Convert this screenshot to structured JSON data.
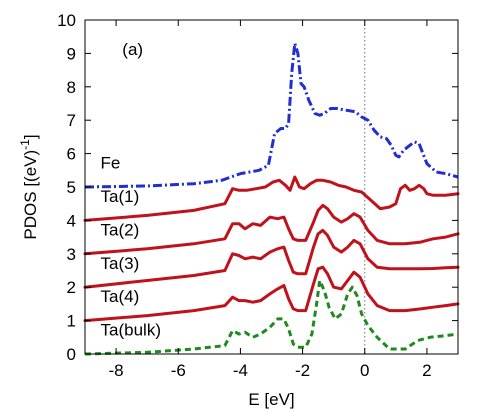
{
  "chart_data": {
    "type": "line",
    "panel_label": "(a)",
    "xlabel": "E [eV]",
    "ylabel": "PDOS [(eV)^-1]",
    "ylabel_parts": {
      "main": "PDOS [(eV)",
      "sup": "-1",
      "end": "]"
    },
    "xlim": [
      -9,
      3
    ],
    "ylim": [
      0,
      10
    ],
    "xticks": [
      -8,
      -6,
      -4,
      -2,
      0,
      2
    ],
    "yticks": [
      0,
      1,
      2,
      3,
      4,
      5,
      6,
      7,
      8,
      9,
      10
    ],
    "vline_at": 0,
    "series": [
      {
        "name": "Fe",
        "color": "#1f2fd0",
        "style": "dashdot",
        "offset": 5,
        "x": [
          -9,
          -7,
          -5.5,
          -4.6,
          -4.3,
          -4.0,
          -3.7,
          -3.4,
          -3.1,
          -2.9,
          -2.7,
          -2.55,
          -2.45,
          -2.35,
          -2.25,
          -2.15,
          -2.05,
          -1.95,
          -1.8,
          -1.6,
          -1.45,
          -1.3,
          -1.1,
          -0.9,
          -0.6,
          -0.3,
          -0.1,
          0.1,
          0.3,
          0.5,
          0.7,
          0.85,
          1.0,
          1.1,
          1.25,
          1.45,
          1.6,
          1.75,
          1.85,
          2.0,
          2.3,
          2.6,
          3.0
        ],
        "y": [
          0,
          0.03,
          0.1,
          0.2,
          0.3,
          0.4,
          0.45,
          0.5,
          0.65,
          1.6,
          1.75,
          1.75,
          1.9,
          3.4,
          4.3,
          4.0,
          3.1,
          3.0,
          2.6,
          2.2,
          2.15,
          2.2,
          2.35,
          2.35,
          2.3,
          2.25,
          2.1,
          2.0,
          1.7,
          1.5,
          1.45,
          1.25,
          0.95,
          0.9,
          1.1,
          1.25,
          1.35,
          1.3,
          1.05,
          0.7,
          0.45,
          0.4,
          0.3
        ]
      },
      {
        "name": "Ta(1)",
        "color": "#c0121a",
        "style": "solid",
        "offset": 4,
        "x": [
          -9,
          -7,
          -5.5,
          -4.5,
          -4.25,
          -4.05,
          -3.8,
          -3.5,
          -3.2,
          -2.95,
          -2.75,
          -2.55,
          -2.4,
          -2.25,
          -2.1,
          -1.95,
          -1.75,
          -1.55,
          -1.35,
          -1.1,
          -0.85,
          -0.6,
          -0.35,
          -0.1,
          0.2,
          0.5,
          0.8,
          1.0,
          1.15,
          1.3,
          1.45,
          1.6,
          1.75,
          1.9,
          2.0,
          2.2,
          2.6,
          3.0
        ],
        "y": [
          0,
          0.15,
          0.3,
          0.5,
          0.95,
          0.9,
          0.9,
          0.95,
          1.0,
          1.15,
          1.2,
          1.05,
          0.9,
          1.3,
          1.0,
          0.95,
          1.1,
          1.2,
          1.2,
          1.15,
          1.05,
          1.0,
          0.9,
          0.85,
          0.6,
          0.35,
          0.4,
          0.5,
          0.95,
          1.05,
          0.9,
          0.95,
          1.05,
          0.95,
          0.8,
          0.75,
          0.75,
          0.8
        ]
      },
      {
        "name": "Ta(2)",
        "color": "#c0121a",
        "style": "solid",
        "offset": 3,
        "x": [
          -9,
          -7,
          -5.5,
          -4.5,
          -4.25,
          -4.05,
          -3.85,
          -3.6,
          -3.35,
          -3.05,
          -2.8,
          -2.6,
          -2.45,
          -2.3,
          -2.15,
          -1.9,
          -1.65,
          -1.5,
          -1.35,
          -1.2,
          -1.0,
          -0.75,
          -0.55,
          -0.35,
          -0.15,
          0.1,
          0.4,
          0.8,
          1.3,
          1.8,
          2.2,
          2.6,
          3.0
        ],
        "y": [
          0,
          0.15,
          0.3,
          0.45,
          0.9,
          0.9,
          0.75,
          0.9,
          0.85,
          1.1,
          1.05,
          1.1,
          0.75,
          0.45,
          0.4,
          0.4,
          0.95,
          1.3,
          1.45,
          1.35,
          1.1,
          0.95,
          1.05,
          1.2,
          1.1,
          0.7,
          0.4,
          0.3,
          0.3,
          0.35,
          0.45,
          0.5,
          0.6
        ]
      },
      {
        "name": "Ta(3)",
        "color": "#c0121a",
        "style": "solid",
        "offset": 2,
        "x": [
          -9,
          -7,
          -5.5,
          -4.5,
          -4.25,
          -4.05,
          -3.85,
          -3.6,
          -3.35,
          -3.05,
          -2.8,
          -2.6,
          -2.45,
          -2.3,
          -2.15,
          -1.9,
          -1.65,
          -1.5,
          -1.35,
          -1.2,
          -1.0,
          -0.75,
          -0.55,
          -0.35,
          -0.15,
          0.1,
          0.4,
          0.8,
          1.3,
          1.8,
          2.2,
          2.6,
          3.0
        ],
        "y": [
          0,
          0.2,
          0.35,
          0.5,
          1.0,
          0.95,
          0.85,
          0.9,
          0.85,
          1.05,
          1.15,
          1.2,
          0.8,
          0.45,
          0.4,
          0.4,
          1.2,
          1.6,
          1.7,
          1.55,
          1.2,
          1.05,
          1.2,
          1.4,
          1.3,
          0.85,
          0.6,
          0.55,
          0.55,
          0.55,
          0.56,
          0.58,
          0.6
        ]
      },
      {
        "name": "Ta(4)",
        "color": "#c0121a",
        "style": "solid",
        "offset": 1,
        "x": [
          -9,
          -7,
          -5.5,
          -4.5,
          -4.25,
          -4.05,
          -3.85,
          -3.6,
          -3.35,
          -3.05,
          -2.8,
          -2.6,
          -2.45,
          -2.3,
          -2.15,
          -1.9,
          -1.65,
          -1.5,
          -1.35,
          -1.2,
          -1.0,
          -0.75,
          -0.55,
          -0.35,
          -0.15,
          0.1,
          0.4,
          0.8,
          1.3,
          1.8,
          2.2,
          2.6,
          3.0
        ],
        "y": [
          0,
          0.15,
          0.3,
          0.45,
          0.7,
          0.6,
          0.6,
          0.55,
          0.6,
          0.8,
          0.95,
          1.05,
          0.65,
          0.35,
          0.3,
          0.3,
          1.1,
          1.55,
          1.6,
          1.4,
          1.0,
          0.95,
          1.2,
          1.45,
          1.3,
          0.8,
          0.45,
          0.3,
          0.3,
          0.35,
          0.4,
          0.45,
          0.5
        ]
      },
      {
        "name": "Ta(bulk)",
        "color": "#1e8a1e",
        "style": "dashed",
        "offset": 0,
        "x": [
          -9,
          -7,
          -5.5,
          -4.5,
          -4.25,
          -4.05,
          -3.85,
          -3.6,
          -3.35,
          -3.05,
          -2.8,
          -2.6,
          -2.45,
          -2.3,
          -2.15,
          -1.9,
          -1.7,
          -1.55,
          -1.45,
          -1.3,
          -1.15,
          -0.95,
          -0.75,
          -0.55,
          -0.4,
          -0.25,
          -0.1,
          0.1,
          0.4,
          0.8,
          1.3,
          1.7,
          2.1,
          2.6,
          3.0
        ],
        "y": [
          0,
          0.05,
          0.15,
          0.25,
          0.7,
          0.6,
          0.65,
          0.5,
          0.6,
          0.8,
          1.05,
          1.05,
          0.75,
          0.3,
          0.2,
          0.2,
          0.6,
          1.5,
          2.2,
          1.9,
          1.4,
          1.05,
          1.2,
          1.8,
          2.0,
          1.75,
          1.2,
          0.85,
          0.5,
          0.15,
          0.15,
          0.4,
          0.5,
          0.55,
          0.6
        ]
      }
    ]
  }
}
